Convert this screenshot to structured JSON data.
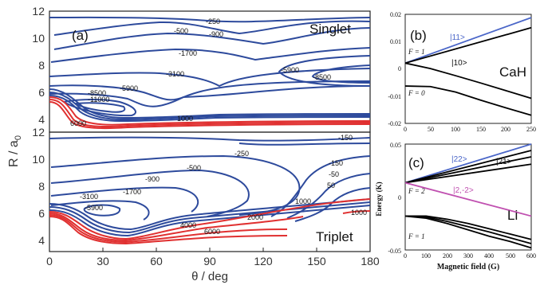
{
  "colors": {
    "singlet_contour": "#2d4a9c",
    "triplet_contour": "#2d4a9c",
    "repulsive_contour": "#e03030",
    "highlight_blue": "#4a66c8",
    "highlight_magenta": "#c050b0",
    "curve": "#000000"
  },
  "chart_data": [
    {
      "type": "contour",
      "panel_label": "(a)",
      "title": "Singlet",
      "xlabel": "θ / deg",
      "ylabel": "R / a0",
      "ylabel_main": "R / a",
      "ylabel_sub": "0",
      "xlim": [
        0,
        180
      ],
      "ylim": [
        3,
        12
      ],
      "xticks": [
        "0",
        "30",
        "60",
        "90",
        "120",
        "150",
        "180"
      ],
      "yticks": [
        "4",
        "6",
        "8",
        "10",
        "12"
      ],
      "contour_labels": [
        "-250",
        "-500",
        "-900",
        "-1700",
        "-3100",
        "-5900",
        "-8500",
        "-11000",
        "-5900",
        "-8500",
        "1000",
        "6000"
      ]
    },
    {
      "type": "contour",
      "title": "Triplet",
      "xlabel": "θ / deg",
      "ylabel": "R / a0",
      "xlim": [
        0,
        180
      ],
      "ylim": [
        3,
        12
      ],
      "xticks": [
        "0",
        "30",
        "60",
        "90",
        "120",
        "150",
        "180"
      ],
      "yticks": [
        "4",
        "6",
        "8",
        "10",
        "12"
      ],
      "contour_labels": [
        "-150",
        "-250",
        "-500",
        "-900",
        "-1700",
        "-3100",
        "-5900",
        "-150",
        "-50",
        "50",
        "1000",
        "1000",
        "2000",
        "4000",
        "6000"
      ]
    },
    {
      "type": "line",
      "panel_label": "(b)",
      "species": "CaH",
      "xlim": [
        0,
        250
      ],
      "ylim": [
        -0.02,
        0.02
      ],
      "xticks": [
        "0",
        "50",
        "100",
        "150",
        "200",
        "250"
      ],
      "yticks": [
        "0.02",
        "0.01",
        "0",
        "-0.01",
        "-0.02"
      ],
      "state_labels": [
        "|11>",
        "|10>"
      ],
      "f_labels": [
        "F = 1",
        "F = 0"
      ],
      "series": [
        {
          "name": "|11>",
          "x": [
            0,
            250
          ],
          "y": [
            0.0021,
            0.0188
          ]
        },
        {
          "x": [
            0,
            250
          ],
          "y": [
            0.0021,
            0.0151
          ]
        },
        {
          "name": "|10>",
          "x": [
            0,
            50,
            100,
            150,
            200,
            250
          ],
          "y": [
            0.0021,
            0.0001,
            -0.0025,
            -0.0052,
            -0.008,
            -0.0108
          ]
        },
        {
          "name": "F = 0",
          "x": [
            0,
            50,
            100,
            150,
            200,
            250
          ],
          "y": [
            -0.0063,
            -0.0065,
            -0.0085,
            -0.0115,
            -0.0143,
            -0.017
          ]
        }
      ]
    },
    {
      "type": "line",
      "panel_label": "(c)",
      "species": "Li",
      "xlabel": "Magnetic field (G)",
      "ylabel": "Energy (K)",
      "xlim": [
        0,
        600
      ],
      "ylim": [
        -0.05,
        0.05
      ],
      "xticks": [
        "0",
        "100",
        "200",
        "300",
        "400",
        "500",
        "600"
      ],
      "yticks": [
        "0.05",
        "0",
        "-0.05"
      ],
      "state_labels": [
        "|22>",
        "|21>",
        "|2,-2>"
      ],
      "f_labels": [
        "F = 2",
        "F = 1"
      ],
      "series": [
        {
          "name": "|22>",
          "x": [
            0,
            600
          ],
          "y": [
            0.0135,
            0.05
          ]
        },
        {
          "name": "|21>",
          "x": [
            0,
            600
          ],
          "y": [
            0.0135,
            0.044
          ]
        },
        {
          "x": [
            0,
            600
          ],
          "y": [
            0.0135,
            0.038
          ]
        },
        {
          "x": [
            0,
            600
          ],
          "y": [
            0.0135,
            0.031
          ]
        },
        {
          "name": "|2,-2>",
          "x": [
            0,
            600
          ],
          "y": [
            0.0135,
            -0.018
          ]
        },
        {
          "name": "F = 1",
          "x": [
            0,
            100,
            200,
            300,
            400,
            500,
            600
          ],
          "y": [
            -0.018,
            -0.018,
            -0.021,
            -0.025,
            -0.03,
            -0.035,
            -0.04
          ]
        },
        {
          "x": [
            0,
            100,
            200,
            300,
            400,
            500,
            600
          ],
          "y": [
            -0.018,
            -0.02,
            -0.025,
            -0.031,
            -0.037,
            -0.042,
            -0.048
          ]
        },
        {
          "x": [
            0,
            100,
            200,
            300,
            400,
            500,
            600
          ],
          "y": [
            -0.018,
            -0.019,
            -0.023,
            -0.028,
            -0.033,
            -0.0385,
            -0.044
          ]
        }
      ]
    }
  ]
}
